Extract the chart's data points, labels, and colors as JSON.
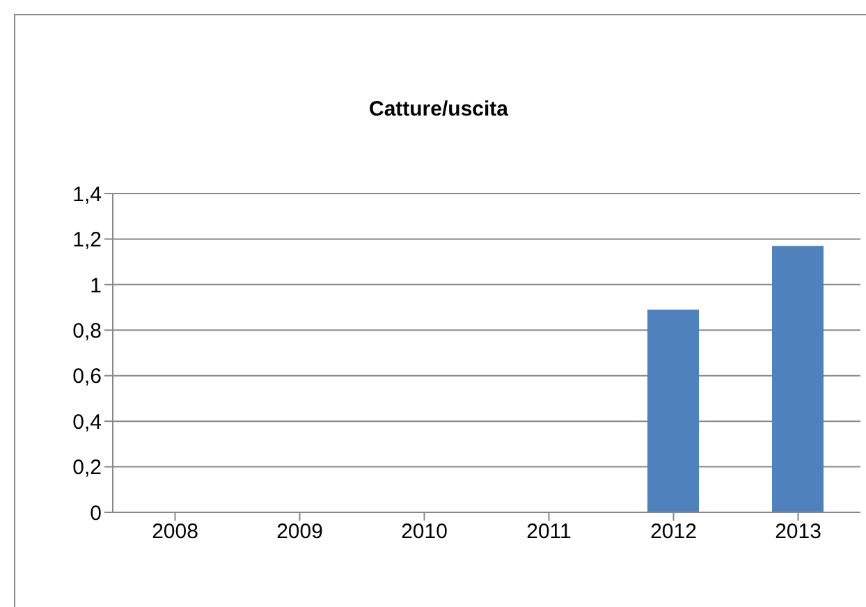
{
  "chart_data": {
    "type": "bar",
    "title": "Catture/uscita",
    "categories": [
      "2008",
      "2009",
      "2010",
      "2011",
      "2012",
      "2013"
    ],
    "values": [
      0,
      0,
      0,
      0,
      0.89,
      1.17
    ],
    "color": "#4f81bd",
    "ylim": [
      0,
      1.4
    ],
    "yticks": [
      0,
      {
        "value": 0.2,
        "label": "0,2"
      },
      {
        "value": 0.4,
        "label": "0,4"
      },
      {
        "value": 0.6,
        "label": "0,6"
      },
      {
        "value": 0.8,
        "label": "0,8"
      },
      1,
      {
        "value": 1.2,
        "label": "1,2"
      },
      {
        "value": 1.4,
        "label": "1,4"
      }
    ],
    "grid": "y",
    "legend": false
  }
}
